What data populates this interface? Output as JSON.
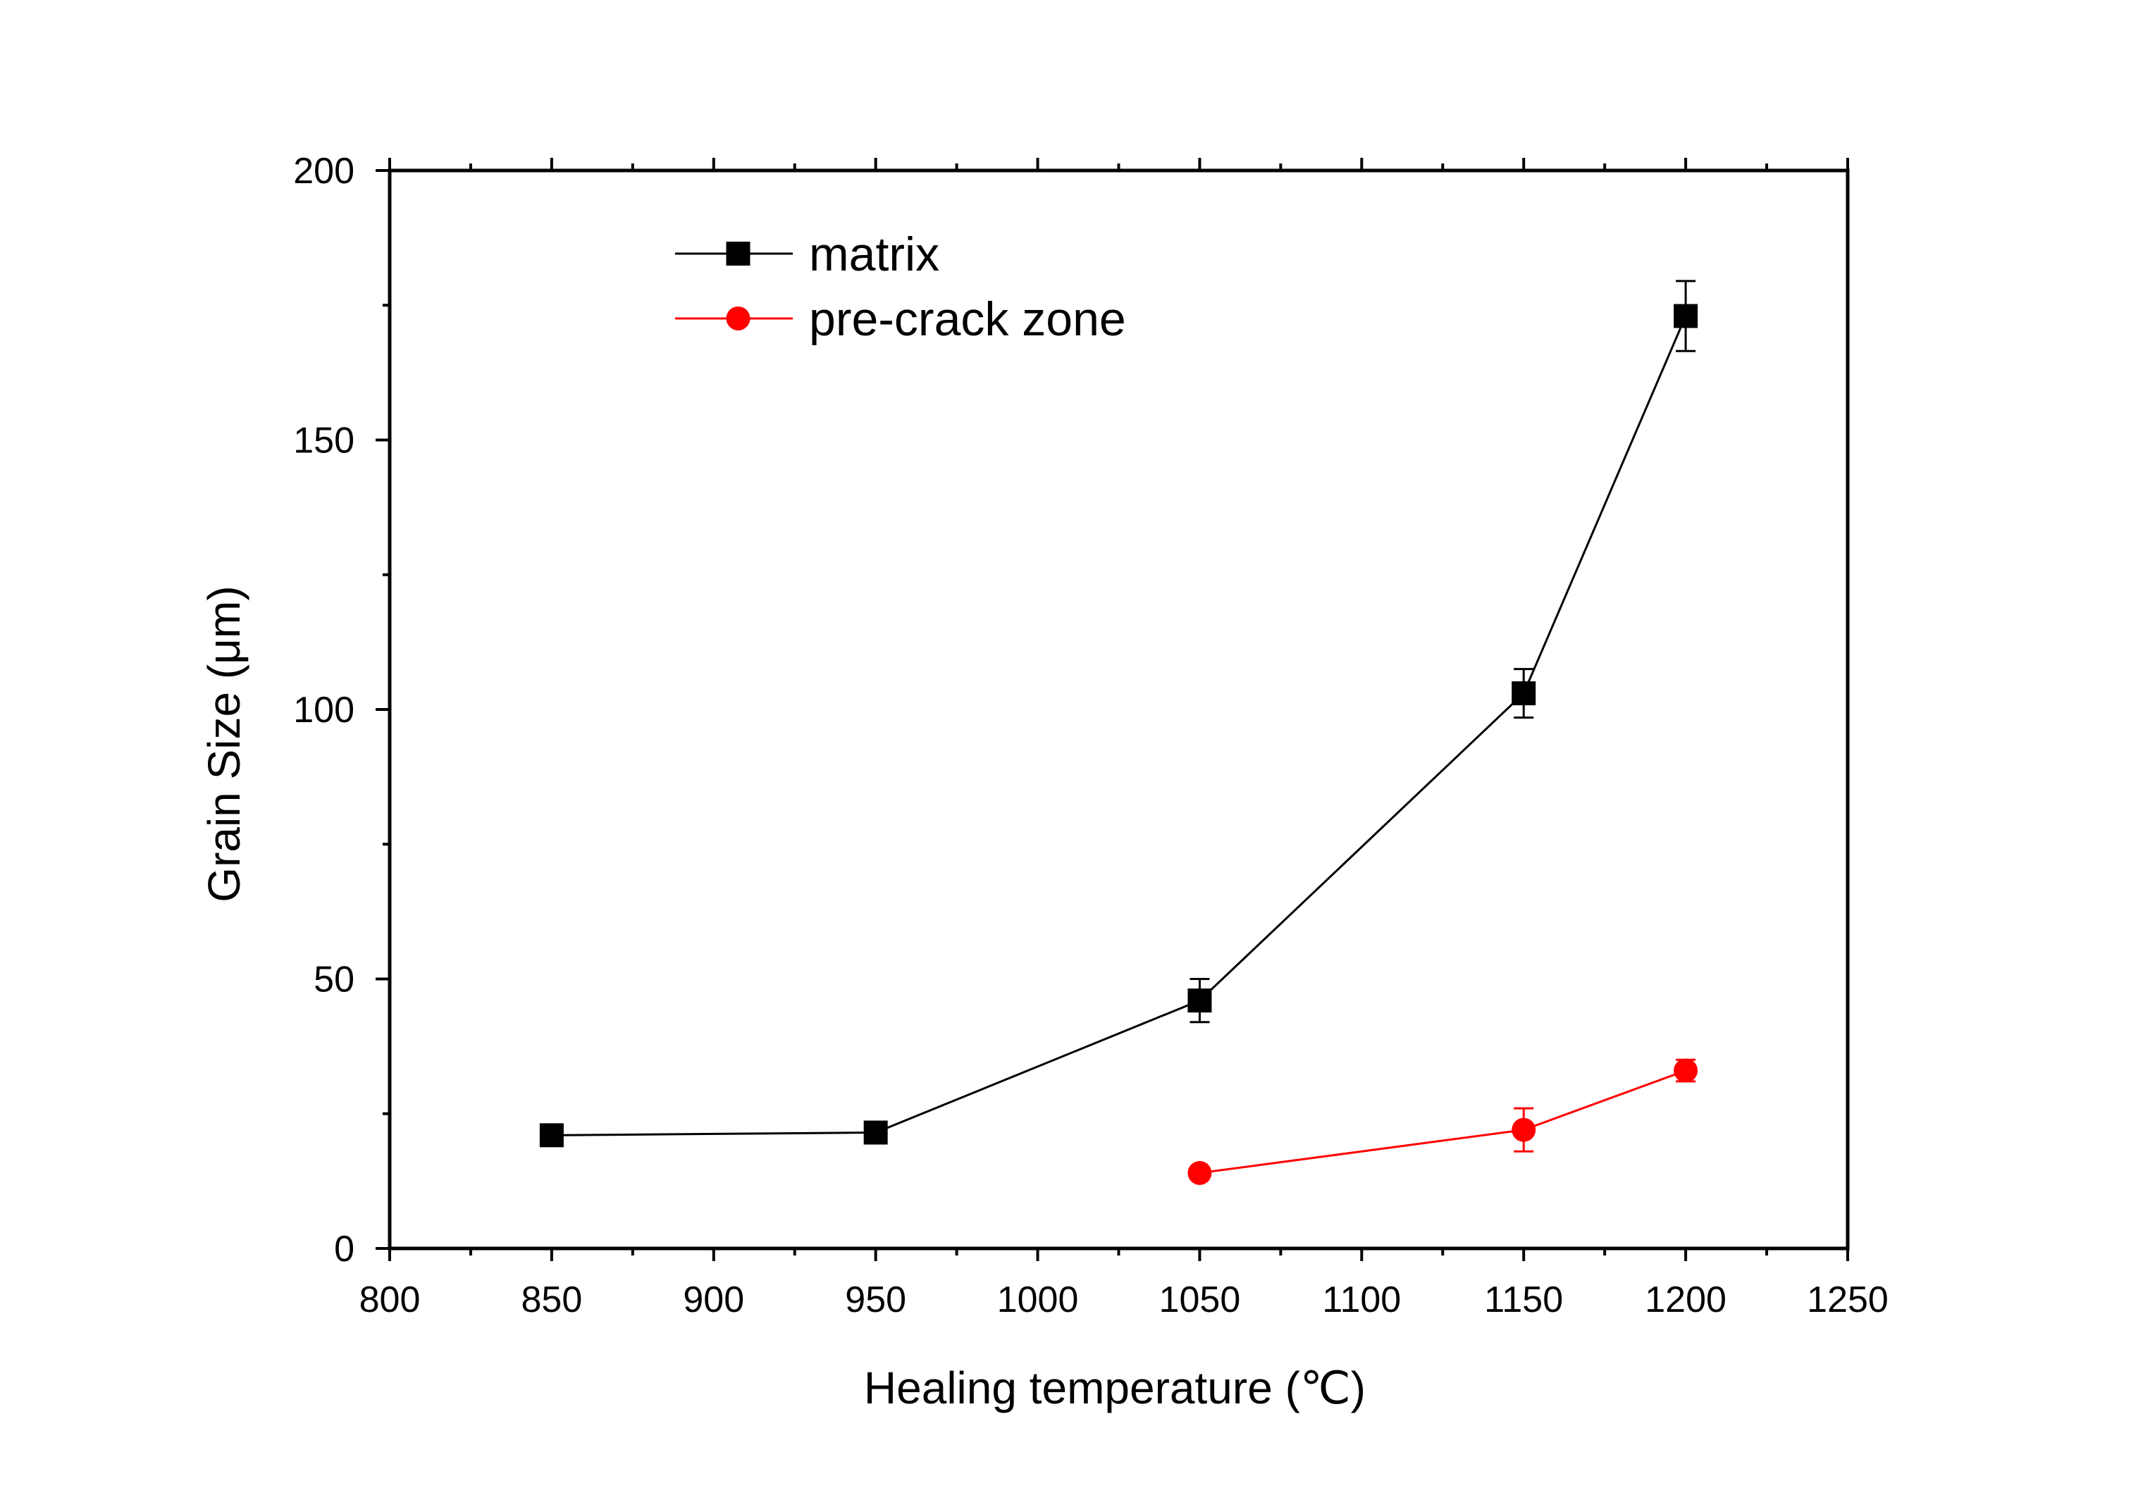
{
  "chart_data": {
    "type": "line",
    "title": "",
    "xlabel": "Healing temperature (℃)",
    "ylabel": "Grain Size (μm)",
    "xlim": [
      800,
      1250
    ],
    "ylim": [
      0,
      200
    ],
    "x_ticks": [
      800,
      850,
      900,
      950,
      1000,
      1050,
      1100,
      1150,
      1200,
      1250
    ],
    "y_ticks": [
      0,
      50,
      100,
      150,
      200
    ],
    "grid": false,
    "legend_position": "top-left",
    "series": [
      {
        "name": "matrix",
        "color": "#000000",
        "marker": "square",
        "x": [
          850,
          950,
          1050,
          1150,
          1200
        ],
        "y": [
          21,
          21.5,
          46,
          103,
          173
        ],
        "error": [
          0,
          0,
          4,
          4.5,
          6.5
        ]
      },
      {
        "name": "pre-crack zone",
        "color": "#ff0000",
        "marker": "circle",
        "x": [
          1050,
          1150,
          1200
        ],
        "y": [
          14,
          22,
          33
        ],
        "error": [
          0,
          4,
          2
        ]
      }
    ]
  }
}
